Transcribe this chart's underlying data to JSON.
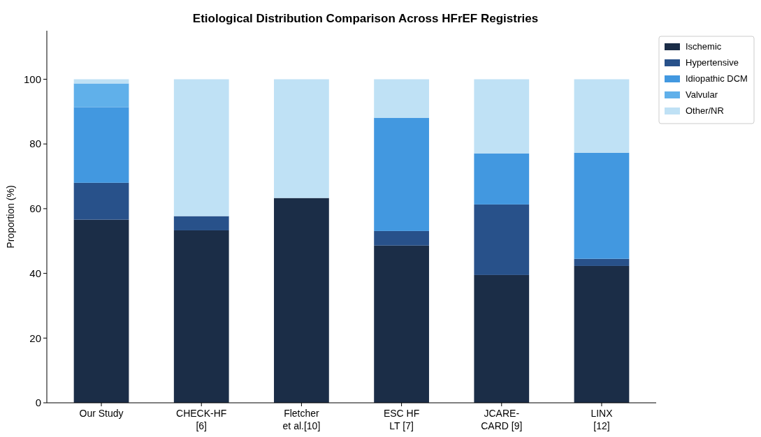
{
  "chart_data": {
    "type": "bar",
    "title": "Etiological Distribution Comparison Across HFrEF Registries",
    "ylabel": "Proportion (%)",
    "categories": [
      "Our Study",
      "CHECK-HF\n[6]",
      "Fletcher\net al.[10]",
      "ESC HF\nLT [7]",
      "JCARE-\nCARD [9]",
      "LINX\n[12]"
    ],
    "stacked": true,
    "series": [
      {
        "name": "Ischemic",
        "color": "#1b2d47",
        "values": [
          56.6,
          53.3,
          63.3,
          48.6,
          39.5,
          42.3
        ]
      },
      {
        "name": "Hypertensive",
        "color": "#28518a",
        "values": [
          11.4,
          4.4,
          0,
          4.5,
          21.8,
          2.2
        ]
      },
      {
        "name": "Idiopathic DCM",
        "color": "#4298e0",
        "values": [
          23.4,
          0,
          0,
          35.0,
          15.8,
          32.8
        ]
      },
      {
        "name": "Valvular",
        "color": "#60b0ea",
        "values": [
          7.3,
          0,
          0,
          0,
          0,
          0
        ]
      },
      {
        "name": "Other/NR",
        "color": "#bfe1f5",
        "values": [
          1.3,
          42.3,
          36.7,
          11.9,
          22.9,
          22.7
        ]
      }
    ],
    "ylim": [
      0,
      115
    ],
    "yticks": [
      0,
      20,
      40,
      60,
      80,
      100
    ],
    "grid": false,
    "legend": "top right"
  }
}
